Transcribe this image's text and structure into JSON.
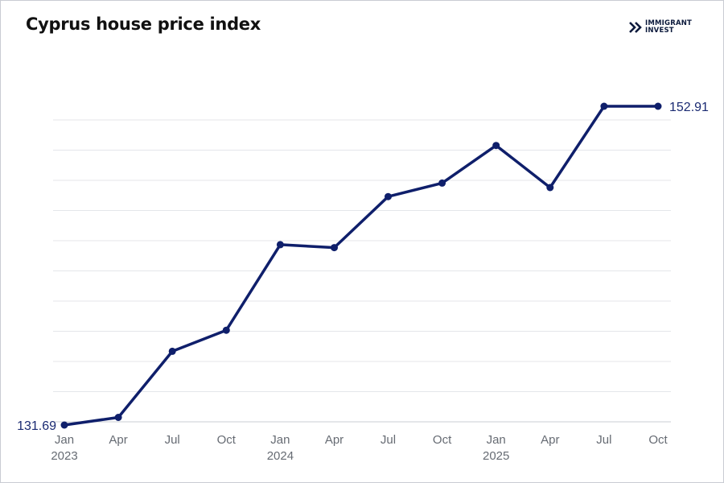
{
  "brand": {
    "logo_line1": "IMMIGRANT",
    "logo_line2": "INVEST",
    "logo_icon": "double-chevron-right-icon"
  },
  "colors": {
    "line": "#0f1f6b",
    "grid": "#e4e6ea",
    "axis": "#c9ccd3",
    "label": "#1a2a72"
  },
  "chart_data": {
    "type": "line",
    "title": "Cyprus house price index",
    "xlabel": "",
    "ylabel": "",
    "grid": true,
    "x": [
      "Jan",
      "Apr",
      "Jul",
      "Oct",
      "Jan",
      "Apr",
      "Jul",
      "Oct",
      "Jan",
      "Apr",
      "Jul",
      "Oct"
    ],
    "year_labels": [
      {
        "index": 0,
        "label": "2023"
      },
      {
        "index": 4,
        "label": "2024"
      },
      {
        "index": 8,
        "label": "2025"
      }
    ],
    "series": [
      {
        "values": [
          131.69,
          132.2,
          136.6,
          138.0,
          143.7,
          143.5,
          146.9,
          147.8,
          150.3,
          147.5,
          152.91,
          152.91
        ]
      }
    ],
    "data_labels": [
      {
        "index": 0,
        "text": "131.69"
      },
      {
        "index": 11,
        "text": "152.91"
      }
    ],
    "ylim": [
      131.69,
      152.91
    ]
  }
}
